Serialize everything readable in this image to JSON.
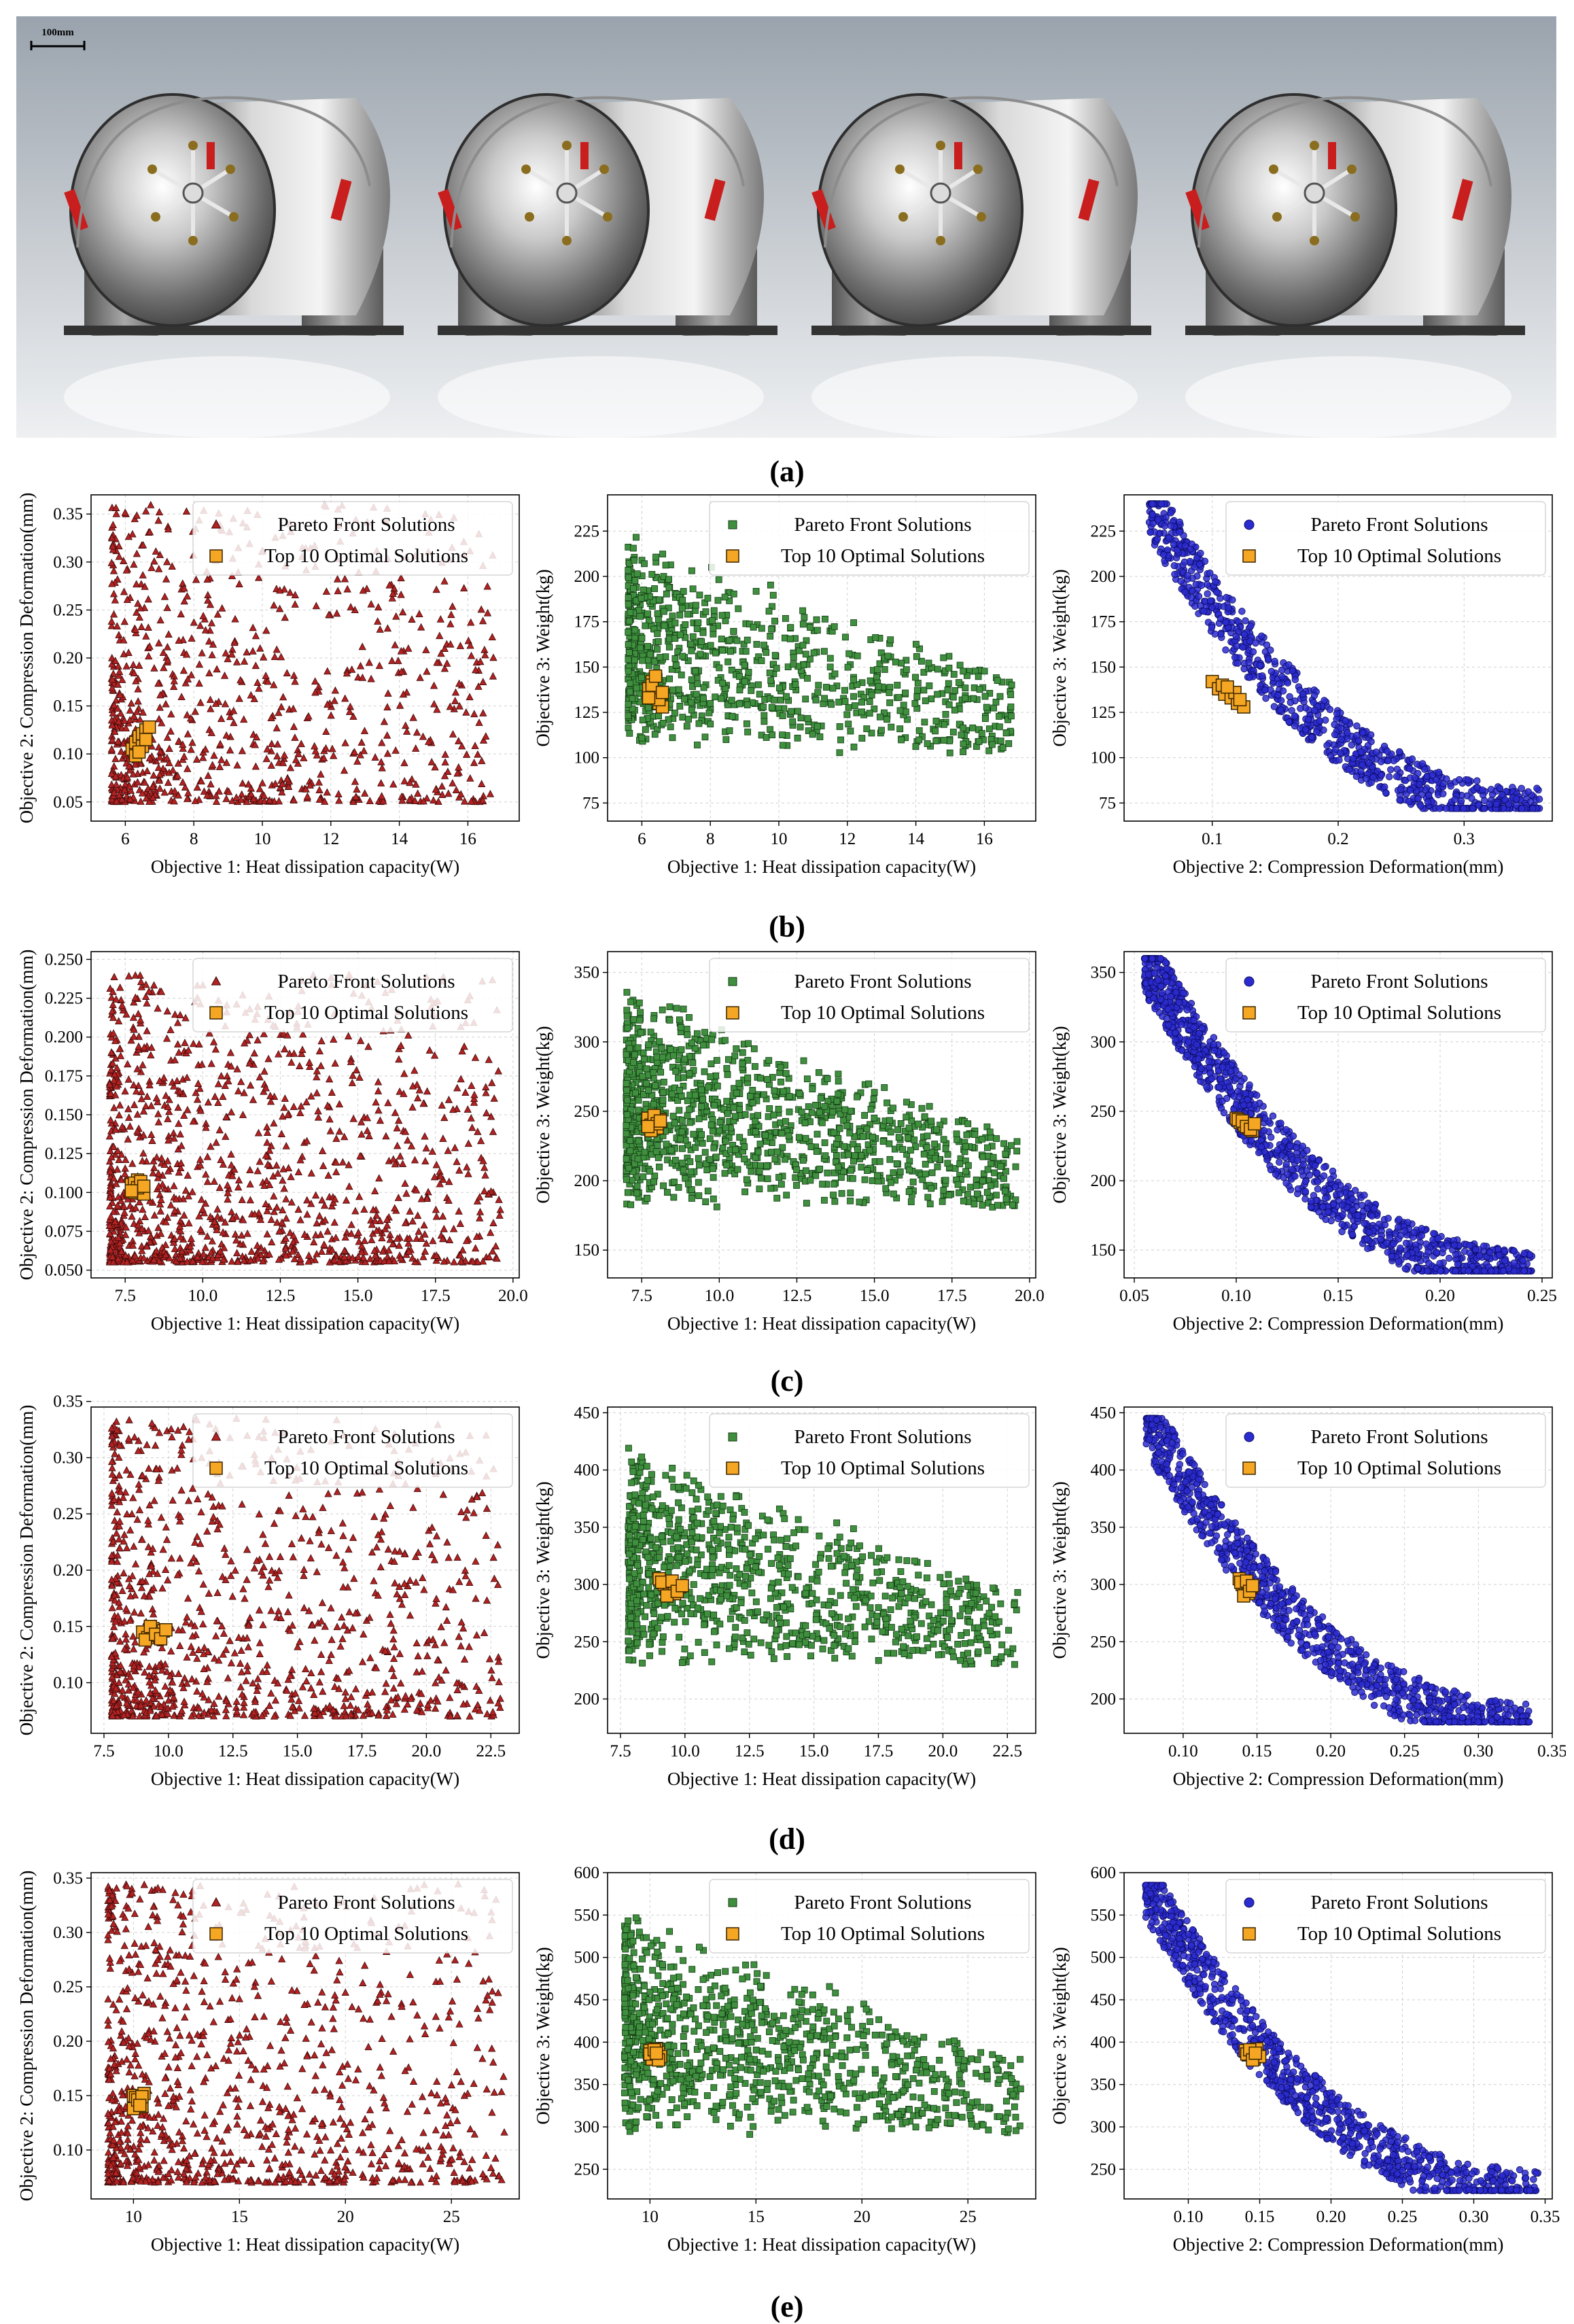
{
  "photo": {
    "scale_bar_label": "100mm"
  },
  "panel_labels": [
    "(a)",
    "(b)",
    "(c)",
    "(d)",
    "(e)"
  ],
  "colors": {
    "triangle_fill": "#b22222",
    "triangle_stroke": "#3a0a0a",
    "square_fill": "#3f8f3f",
    "square_stroke": "#123a12",
    "circle_fill": "#2b2bd0",
    "circle_stroke": "#0a0a60",
    "optimal_fill": "#f5a623",
    "optimal_stroke": "#3a2400"
  },
  "legend": {
    "pareto": "Pareto Front Solutions",
    "optimal": "Top 10 Optimal Solutions"
  },
  "chart_data": [
    {
      "id": "b1",
      "row": "(b)",
      "type": "scatter",
      "marker": "triangle",
      "xlabel": "Objective 1: Heat dissipation capacity(W)",
      "ylabel": "Objective 2: Compression Deformation(mm)",
      "xlim": [
        5,
        17.5
      ],
      "ylim": [
        0.03,
        0.37
      ],
      "xticks": [
        6,
        8,
        10,
        12,
        14,
        16
      ],
      "yticks": [
        0.05,
        0.1,
        0.15,
        0.2,
        0.25,
        0.3,
        0.35
      ],
      "xtick_labels": [
        "6",
        "8",
        "10",
        "12",
        "14",
        "16"
      ],
      "ytick_labels": [
        "0.05",
        "0.10",
        "0.15",
        "0.20",
        "0.25",
        "0.30",
        "0.35"
      ],
      "legend_position": "top-right",
      "grid": true,
      "pareto_count": 900,
      "pareto_shape": {
        "xmin": 5.6,
        "xmax": 16.8,
        "ymin": 0.05,
        "ymax": 0.36,
        "relation": "independent"
      },
      "optimal": [
        [
          6.2,
          0.105
        ],
        [
          6.3,
          0.112
        ],
        [
          6.4,
          0.118
        ],
        [
          6.5,
          0.121
        ],
        [
          6.6,
          0.125
        ],
        [
          6.3,
          0.098
        ],
        [
          6.5,
          0.108
        ],
        [
          6.7,
          0.128
        ],
        [
          6.4,
          0.102
        ],
        [
          6.6,
          0.115
        ]
      ]
    },
    {
      "id": "b2",
      "row": "(b)",
      "type": "scatter",
      "marker": "square",
      "xlabel": "Objective 1: Heat dissipation capacity(W)",
      "ylabel": "Objective 3: Weight(kg)",
      "xlim": [
        5,
        17.5
      ],
      "ylim": [
        65,
        245
      ],
      "xticks": [
        6,
        8,
        10,
        12,
        14,
        16
      ],
      "yticks": [
        75,
        100,
        125,
        150,
        175,
        200,
        225
      ],
      "xtick_labels": [
        "6",
        "8",
        "10",
        "12",
        "14",
        "16"
      ],
      "ytick_labels": [
        "75",
        "100",
        "125",
        "150",
        "175",
        "200",
        "225"
      ],
      "legend_position": "top-right",
      "grid": true,
      "pareto_count": 900,
      "pareto_shape": {
        "xmin": 5.6,
        "xmax": 16.8,
        "ymin": 72,
        "ymax": 240,
        "relation": "decreasing-weak"
      },
      "optimal": [
        [
          6.2,
          138
        ],
        [
          6.3,
          142
        ],
        [
          6.4,
          135
        ],
        [
          6.5,
          130
        ],
        [
          6.6,
          128
        ],
        [
          6.3,
          140
        ],
        [
          6.5,
          132
        ],
        [
          6.4,
          145
        ],
        [
          6.6,
          136
        ],
        [
          6.2,
          133
        ]
      ]
    },
    {
      "id": "b3",
      "row": "(b)",
      "type": "scatter",
      "marker": "circle",
      "xlabel": "Objective 2: Compression Deformation(mm)",
      "ylabel": "Objective 3: Weight(kg)",
      "xlim": [
        0.03,
        0.37
      ],
      "ylim": [
        65,
        245
      ],
      "xticks": [
        0.1,
        0.2,
        0.3
      ],
      "yticks": [
        75,
        100,
        125,
        150,
        175,
        200,
        225
      ],
      "xtick_labels": [
        "0.1",
        "0.2",
        "0.3"
      ],
      "ytick_labels": [
        "75",
        "100",
        "125",
        "150",
        "175",
        "200",
        "225"
      ],
      "legend_position": "top-right",
      "grid": true,
      "pareto_count": 900,
      "pareto_shape": {
        "xmin": 0.05,
        "xmax": 0.36,
        "ymin": 72,
        "ymax": 240,
        "relation": "inverse"
      },
      "optimal": [
        [
          0.1,
          142
        ],
        [
          0.105,
          138
        ],
        [
          0.11,
          135
        ],
        [
          0.115,
          133
        ],
        [
          0.12,
          130
        ],
        [
          0.125,
          128
        ],
        [
          0.108,
          140
        ],
        [
          0.118,
          136
        ],
        [
          0.122,
          132
        ],
        [
          0.112,
          139
        ]
      ]
    },
    {
      "id": "c1",
      "row": "(c)",
      "type": "scatter",
      "marker": "triangle",
      "xlabel": "Objective 1: Heat dissipation capacity(W)",
      "ylabel": "Objective 2: Compression Deformation(mm)",
      "xlim": [
        6.4,
        20.2
      ],
      "ylim": [
        0.045,
        0.255
      ],
      "xticks": [
        7.5,
        10,
        12.5,
        15,
        17.5,
        20
      ],
      "yticks": [
        0.05,
        0.075,
        0.1,
        0.125,
        0.15,
        0.175,
        0.2,
        0.225,
        0.25
      ],
      "xtick_labels": [
        "7.5",
        "10.0",
        "12.5",
        "15.0",
        "17.5",
        "20.0"
      ],
      "ytick_labels": [
        "0.050",
        "0.075",
        "0.100",
        "0.125",
        "0.150",
        "0.175",
        "0.200",
        "0.225",
        "0.250"
      ],
      "legend_position": "top-right",
      "grid": true,
      "pareto_count": 1200,
      "pareto_shape": {
        "xmin": 7.0,
        "xmax": 19.6,
        "ymin": 0.055,
        "ymax": 0.24,
        "relation": "independent"
      },
      "optimal": [
        [
          7.7,
          0.105
        ],
        [
          7.8,
          0.1
        ],
        [
          7.9,
          0.108
        ],
        [
          8.0,
          0.102
        ],
        [
          8.1,
          0.099
        ],
        [
          7.8,
          0.106
        ],
        [
          7.9,
          0.103
        ],
        [
          8.0,
          0.107
        ],
        [
          7.7,
          0.101
        ],
        [
          8.1,
          0.104
        ]
      ]
    },
    {
      "id": "c2",
      "row": "(c)",
      "type": "scatter",
      "marker": "square",
      "xlabel": "Objective 1: Heat dissipation capacity(W)",
      "ylabel": "Objective 3: Weight(kg)",
      "xlim": [
        6.4,
        20.2
      ],
      "ylim": [
        130,
        365
      ],
      "xticks": [
        7.5,
        10,
        12.5,
        15,
        17.5,
        20
      ],
      "yticks": [
        150,
        200,
        250,
        300,
        350
      ],
      "xtick_labels": [
        "7.5",
        "10.0",
        "12.5",
        "15.0",
        "17.5",
        "20.0"
      ],
      "ytick_labels": [
        "150",
        "200",
        "250",
        "300",
        "350"
      ],
      "legend_position": "top-right",
      "grid": true,
      "pareto_count": 1200,
      "pareto_shape": {
        "xmin": 7.0,
        "xmax": 19.6,
        "ymin": 140,
        "ymax": 360,
        "relation": "decreasing-weak"
      },
      "optimal": [
        [
          7.7,
          245
        ],
        [
          7.8,
          240
        ],
        [
          7.9,
          242
        ],
        [
          8.0,
          238
        ],
        [
          8.1,
          244
        ],
        [
          7.8,
          236
        ],
        [
          7.9,
          247
        ],
        [
          8.0,
          241
        ],
        [
          7.7,
          239
        ],
        [
          8.1,
          243
        ]
      ]
    },
    {
      "id": "c3",
      "row": "(c)",
      "type": "scatter",
      "marker": "circle",
      "xlabel": "Objective 2: Compression Deformation(mm)",
      "ylabel": "Objective 3: Weight(kg)",
      "xlim": [
        0.045,
        0.255
      ],
      "ylim": [
        130,
        365
      ],
      "xticks": [
        0.05,
        0.1,
        0.15,
        0.2,
        0.25
      ],
      "yticks": [
        150,
        200,
        250,
        300,
        350
      ],
      "xtick_labels": [
        "0.05",
        "0.10",
        "0.15",
        "0.20",
        "0.25"
      ],
      "ytick_labels": [
        "150",
        "200",
        "250",
        "300",
        "350"
      ],
      "legend_position": "top-right",
      "grid": true,
      "pareto_count": 1200,
      "pareto_shape": {
        "xmin": 0.055,
        "xmax": 0.245,
        "ymin": 135,
        "ymax": 360,
        "relation": "inverse"
      },
      "optimal": [
        [
          0.1,
          245
        ],
        [
          0.102,
          242
        ],
        [
          0.104,
          240
        ],
        [
          0.106,
          238
        ],
        [
          0.108,
          236
        ],
        [
          0.101,
          244
        ],
        [
          0.103,
          243
        ],
        [
          0.105,
          239
        ],
        [
          0.107,
          237
        ],
        [
          0.109,
          241
        ]
      ]
    },
    {
      "id": "d1",
      "row": "(d)",
      "type": "scatter",
      "marker": "triangle",
      "xlabel": "Objective 1: Heat dissipation capacity(W)",
      "ylabel": "Objective 2: Compression Deformation(mm)",
      "xlim": [
        7.0,
        23.6
      ],
      "ylim": [
        0.055,
        0.345
      ],
      "xticks": [
        7.5,
        10,
        12.5,
        15,
        17.5,
        20,
        22.5
      ],
      "yticks": [
        0.1,
        0.15,
        0.2,
        0.25,
        0.3,
        0.35
      ],
      "xtick_labels": [
        "7.5",
        "10.0",
        "12.5",
        "15.0",
        "17.5",
        "20.0",
        "22.5"
      ],
      "ytick_labels": [
        "0.10",
        "0.15",
        "0.20",
        "0.25",
        "0.30",
        "0.35"
      ],
      "legend_position": "top-right",
      "grid": true,
      "pareto_count": 1000,
      "pareto_shape": {
        "xmin": 7.8,
        "xmax": 22.9,
        "ymin": 0.07,
        "ymax": 0.335,
        "relation": "independent"
      },
      "optimal": [
        [
          9.0,
          0.145
        ],
        [
          9.2,
          0.14
        ],
        [
          9.4,
          0.148
        ],
        [
          9.6,
          0.142
        ],
        [
          9.8,
          0.146
        ],
        [
          9.1,
          0.138
        ],
        [
          9.3,
          0.15
        ],
        [
          9.5,
          0.143
        ],
        [
          9.7,
          0.139
        ],
        [
          9.9,
          0.147
        ]
      ]
    },
    {
      "id": "d2",
      "row": "(d)",
      "type": "scatter",
      "marker": "square",
      "xlabel": "Objective 1: Heat dissipation capacity(W)",
      "ylabel": "Objective 3: Weight(kg)",
      "xlim": [
        7.0,
        23.6
      ],
      "ylim": [
        170,
        455
      ],
      "xticks": [
        7.5,
        10,
        12.5,
        15,
        17.5,
        20,
        22.5
      ],
      "yticks": [
        200,
        250,
        300,
        350,
        400,
        450
      ],
      "xtick_labels": [
        "7.5",
        "10.0",
        "12.5",
        "15.0",
        "17.5",
        "20.0",
        "22.5"
      ],
      "ytick_labels": [
        "200",
        "250",
        "300",
        "350",
        "400",
        "450"
      ],
      "legend_position": "top-right",
      "grid": true,
      "pareto_count": 1000,
      "pareto_shape": {
        "xmin": 7.8,
        "xmax": 22.9,
        "ymin": 180,
        "ymax": 445,
        "relation": "decreasing-weak"
      },
      "optimal": [
        [
          9.0,
          305
        ],
        [
          9.2,
          300
        ],
        [
          9.4,
          296
        ],
        [
          9.6,
          292
        ],
        [
          9.8,
          298
        ],
        [
          9.1,
          302
        ],
        [
          9.3,
          290
        ],
        [
          9.5,
          303
        ],
        [
          9.7,
          294
        ],
        [
          9.9,
          299
        ]
      ]
    },
    {
      "id": "d3",
      "row": "(d)",
      "type": "scatter",
      "marker": "circle",
      "xlabel": "Objective 2: Compression Deformation(mm)",
      "ylabel": "Objective 3: Weight(kg)",
      "xlim": [
        0.06,
        0.35
      ],
      "ylim": [
        170,
        455
      ],
      "xticks": [
        0.1,
        0.15,
        0.2,
        0.25,
        0.3,
        0.35
      ],
      "yticks": [
        200,
        250,
        300,
        350,
        400,
        450
      ],
      "xtick_labels": [
        "0.10",
        "0.15",
        "0.20",
        "0.25",
        "0.30",
        "0.35"
      ],
      "ytick_labels": [
        "200",
        "250",
        "300",
        "350",
        "400",
        "450"
      ],
      "legend_position": "top-right",
      "grid": true,
      "pareto_count": 1000,
      "pareto_shape": {
        "xmin": 0.075,
        "xmax": 0.335,
        "ymin": 180,
        "ymax": 445,
        "relation": "inverse"
      },
      "optimal": [
        [
          0.138,
          305
        ],
        [
          0.14,
          300
        ],
        [
          0.142,
          296
        ],
        [
          0.144,
          292
        ],
        [
          0.146,
          298
        ],
        [
          0.139,
          302
        ],
        [
          0.141,
          290
        ],
        [
          0.143,
          303
        ],
        [
          0.145,
          294
        ],
        [
          0.147,
          299
        ]
      ]
    },
    {
      "id": "e1",
      "row": "(e)",
      "type": "scatter",
      "marker": "triangle",
      "xlabel": "Objective 1: Heat dissipation capacity(W)",
      "ylabel": "Objective 2: Compression Deformation(mm)",
      "xlim": [
        8.0,
        28.2
      ],
      "ylim": [
        0.055,
        0.355
      ],
      "xticks": [
        10,
        15,
        20,
        25
      ],
      "yticks": [
        0.1,
        0.15,
        0.2,
        0.25,
        0.3,
        0.35
      ],
      "xtick_labels": [
        "10",
        "15",
        "20",
        "25"
      ],
      "ytick_labels": [
        "0.10",
        "0.15",
        "0.20",
        "0.25",
        "0.30",
        "0.35"
      ],
      "legend_position": "top-right",
      "grid": true,
      "pareto_count": 1000,
      "pareto_shape": {
        "xmin": 8.8,
        "xmax": 27.5,
        "ymin": 0.07,
        "ymax": 0.345,
        "relation": "independent"
      },
      "optimal": [
        [
          10.0,
          0.15
        ],
        [
          10.2,
          0.145
        ],
        [
          10.4,
          0.14
        ],
        [
          10.1,
          0.148
        ],
        [
          10.3,
          0.143
        ],
        [
          10.5,
          0.152
        ],
        [
          10.0,
          0.138
        ],
        [
          10.2,
          0.146
        ],
        [
          10.4,
          0.149
        ],
        [
          10.3,
          0.141
        ]
      ]
    },
    {
      "id": "e2",
      "row": "(e)",
      "type": "scatter",
      "marker": "square",
      "xlabel": "Objective 1: Heat dissipation capacity(W)",
      "ylabel": "Objective 3: Weight(kg)",
      "xlim": [
        8.0,
        28.2
      ],
      "ylim": [
        215,
        600
      ],
      "xticks": [
        10,
        15,
        20,
        25
      ],
      "yticks": [
        250,
        300,
        350,
        400,
        450,
        500,
        550,
        600
      ],
      "xtick_labels": [
        "10",
        "15",
        "20",
        "25"
      ],
      "ytick_labels": [
        "250",
        "300",
        "350",
        "400",
        "450",
        "500",
        "550",
        "600"
      ],
      "legend_position": "top-right",
      "grid": true,
      "pareto_count": 1000,
      "pareto_shape": {
        "xmin": 8.8,
        "xmax": 27.5,
        "ymin": 225,
        "ymax": 585,
        "relation": "decreasing-weak"
      },
      "optimal": [
        [
          10.0,
          390
        ],
        [
          10.2,
          385
        ],
        [
          10.4,
          388
        ],
        [
          10.1,
          380
        ],
        [
          10.3,
          392
        ],
        [
          10.5,
          383
        ],
        [
          10.0,
          386
        ],
        [
          10.2,
          391
        ],
        [
          10.4,
          379
        ],
        [
          10.3,
          387
        ]
      ]
    },
    {
      "id": "e3",
      "row": "(e)",
      "type": "scatter",
      "marker": "circle",
      "xlabel": "Objective 2: Compression Deformation(mm)",
      "ylabel": "Objective 3: Weight(kg)",
      "xlim": [
        0.055,
        0.355
      ],
      "ylim": [
        215,
        600
      ],
      "xticks": [
        0.1,
        0.15,
        0.2,
        0.25,
        0.3,
        0.35
      ],
      "yticks": [
        250,
        300,
        350,
        400,
        450,
        500,
        550,
        600
      ],
      "xtick_labels": [
        "0.10",
        "0.15",
        "0.20",
        "0.25",
        "0.30",
        "0.35"
      ],
      "ytick_labels": [
        "250",
        "300",
        "350",
        "400",
        "450",
        "500",
        "550",
        "600"
      ],
      "legend_position": "top-right",
      "grid": true,
      "pareto_count": 1000,
      "pareto_shape": {
        "xmin": 0.07,
        "xmax": 0.345,
        "ymin": 225,
        "ymax": 585,
        "relation": "inverse"
      },
      "optimal": [
        [
          0.14,
          390
        ],
        [
          0.142,
          385
        ],
        [
          0.144,
          388
        ],
        [
          0.146,
          380
        ],
        [
          0.148,
          392
        ],
        [
          0.15,
          383
        ],
        [
          0.141,
          386
        ],
        [
          0.143,
          391
        ],
        [
          0.145,
          379
        ],
        [
          0.147,
          387
        ]
      ]
    }
  ]
}
